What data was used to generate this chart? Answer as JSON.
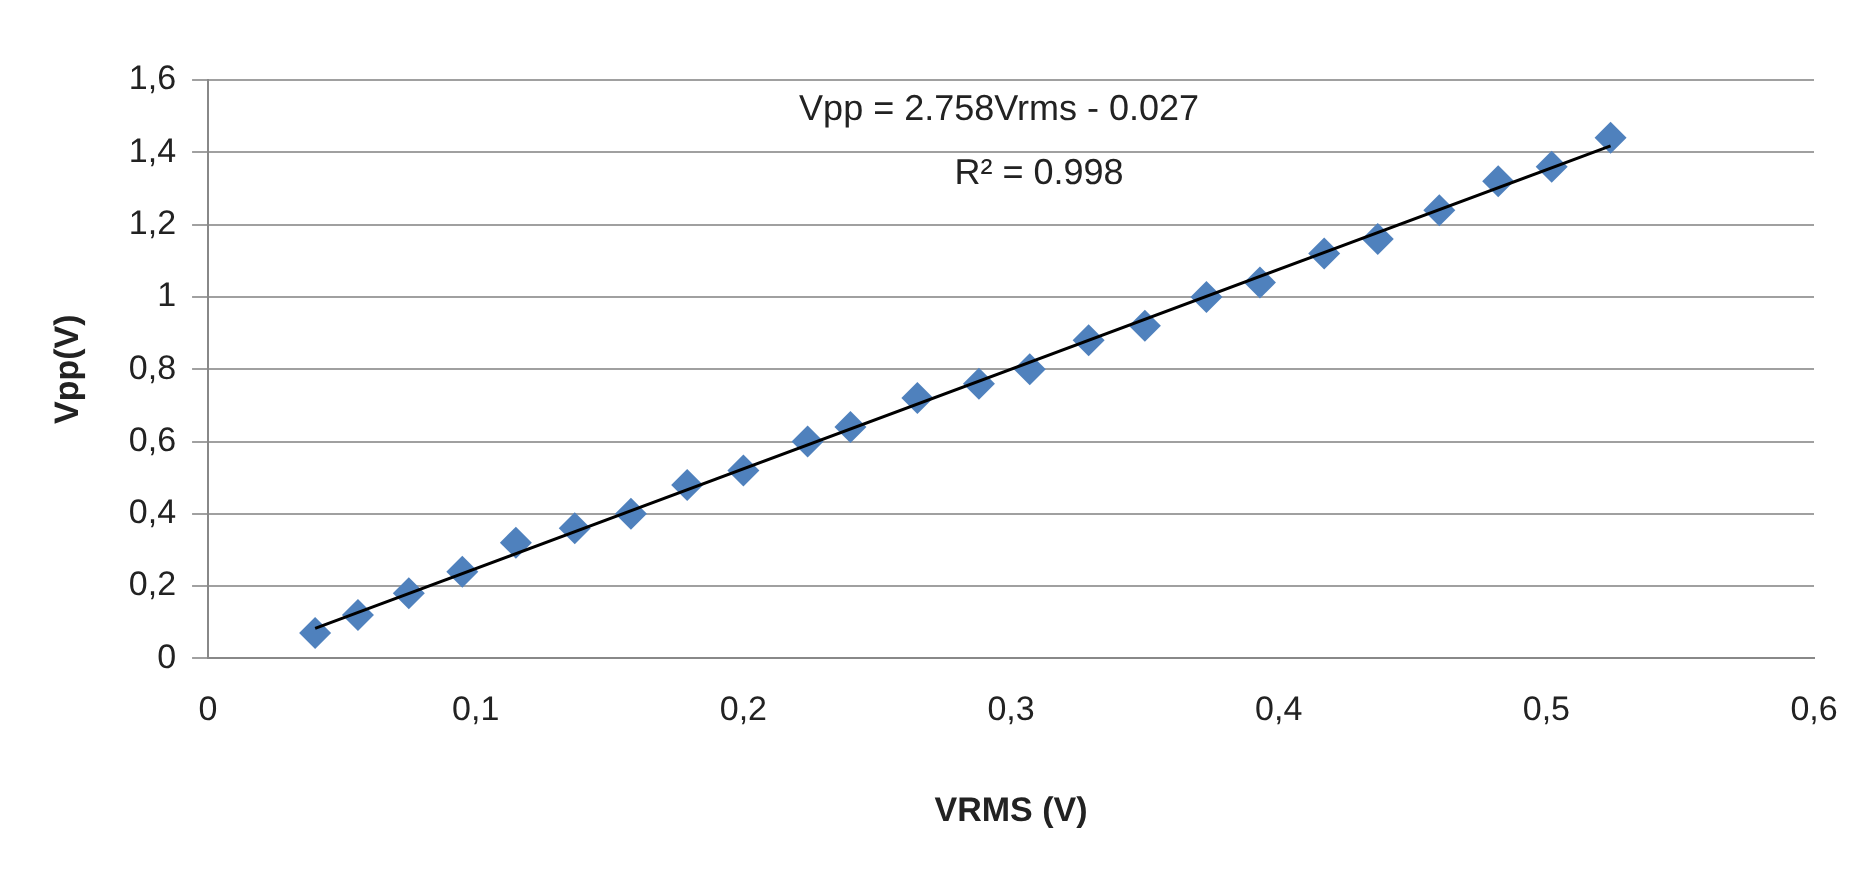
{
  "chart_data": {
    "type": "scatter",
    "xlabel": "VRMS (V)",
    "ylabel": "Vpp(V)",
    "annotations": [
      "Vpp = 2.758Vrms - 0.027",
      "R² = 0.998"
    ],
    "series": [
      {
        "type": "scatter",
        "color": "#4f81bd",
        "marker": "diamond",
        "x": [
          0.04,
          0.056,
          0.075,
          0.095,
          0.115,
          0.137,
          0.158,
          0.179,
          0.2,
          0.224,
          0.24,
          0.265,
          0.288,
          0.307,
          0.329,
          0.35,
          0.373,
          0.393,
          0.417,
          0.437,
          0.46,
          0.482,
          0.502,
          0.524
        ],
        "values": [
          0.07,
          0.12,
          0.18,
          0.24,
          0.32,
          0.36,
          0.4,
          0.48,
          0.52,
          0.6,
          0.64,
          0.72,
          0.76,
          0.8,
          0.88,
          0.92,
          1.0,
          1.04,
          1.12,
          1.16,
          1.24,
          1.32,
          1.36,
          1.44
        ]
      },
      {
        "type": "line",
        "color": "#000000",
        "marker": "none",
        "line_style": "solid",
        "x": [
          0.04,
          0.524
        ],
        "values": [
          0.083,
          1.418
        ]
      }
    ],
    "xlim": [
      0,
      0.6
    ],
    "xticks": [
      0,
      {
        "value": 0.1,
        "label": "0,1"
      },
      {
        "value": 0.2,
        "label": "0,2"
      },
      {
        "value": 0.3,
        "label": "0,3"
      },
      {
        "value": 0.4,
        "label": "0,4"
      },
      {
        "value": 0.5,
        "label": "0,5"
      },
      {
        "value": 0.6,
        "label": "0,6"
      }
    ],
    "ylim": [
      0,
      1.6
    ],
    "yticks": [
      0,
      {
        "value": 0.2,
        "label": "0,2"
      },
      {
        "value": 0.4,
        "label": "0,4"
      },
      {
        "value": 0.6,
        "label": "0,6"
      },
      {
        "value": 0.8,
        "label": "0,8"
      },
      1,
      {
        "value": 1.2,
        "label": "1,2"
      },
      {
        "value": 1.4,
        "label": "1,4"
      },
      {
        "value": 1.6,
        "label": "1,6"
      }
    ],
    "grid": "y",
    "legend": false
  }
}
